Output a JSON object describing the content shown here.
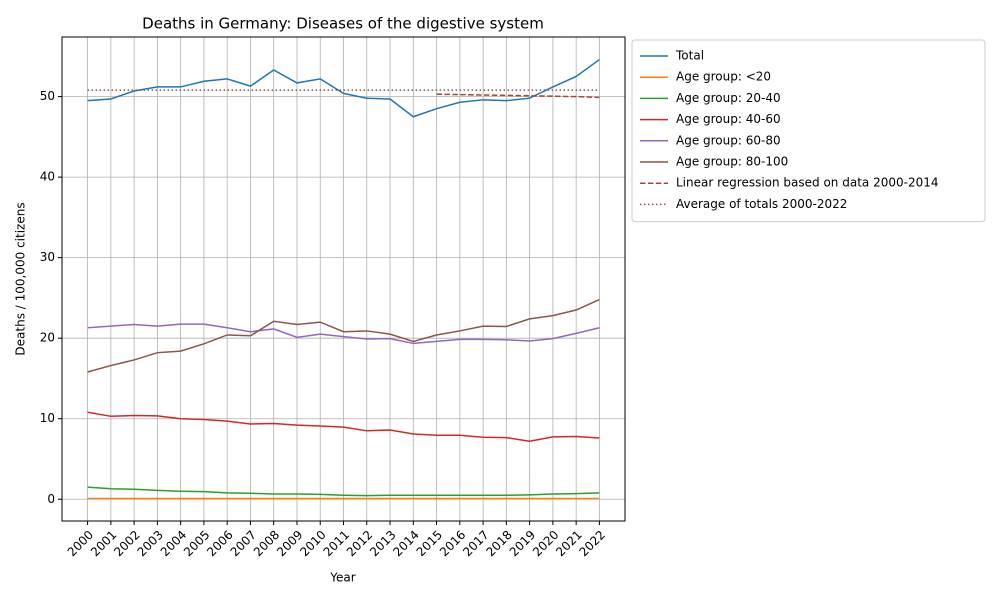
{
  "chart_data": {
    "type": "line",
    "title": "Deaths in Germany: Diseases of the digestive system",
    "xlabel": "Year",
    "ylabel": "Deaths / 100,000 citizens",
    "x": [
      2000,
      2001,
      2002,
      2003,
      2004,
      2005,
      2006,
      2007,
      2008,
      2009,
      2010,
      2011,
      2012,
      2013,
      2014,
      2015,
      2016,
      2017,
      2018,
      2019,
      2020,
      2021,
      2022
    ],
    "xlim": [
      1998.9,
      2023.1
    ],
    "xticks": [
      2000,
      2001,
      2002,
      2003,
      2004,
      2005,
      2006,
      2007,
      2008,
      2009,
      2010,
      2011,
      2012,
      2013,
      2014,
      2015,
      2016,
      2017,
      2018,
      2019,
      2020,
      2021,
      2022
    ],
    "ylim": [
      -2.7,
      57.4
    ],
    "yticks": [
      0,
      10,
      20,
      30,
      40,
      50
    ],
    "grid": true,
    "legend": "outside-upper-right",
    "series": [
      {
        "name": "Total",
        "color": "#1f77b4",
        "linestyle": "solid",
        "values": [
          49.5,
          49.7,
          50.7,
          51.2,
          51.2,
          51.9,
          52.2,
          51.3,
          53.3,
          51.7,
          52.2,
          50.4,
          49.8,
          49.7,
          47.5,
          48.5,
          49.3,
          49.6,
          49.5,
          49.8,
          51.2,
          52.5,
          54.6
        ]
      },
      {
        "name": "Age group: <20",
        "color": "#ff7f0e",
        "linestyle": "solid",
        "values": [
          0.1,
          0.1,
          0.1,
          0.1,
          0.1,
          0.1,
          0.1,
          0.1,
          0.1,
          0.1,
          0.1,
          0.1,
          0.1,
          0.1,
          0.1,
          0.1,
          0.1,
          0.1,
          0.1,
          0.1,
          0.1,
          0.1,
          0.1
        ]
      },
      {
        "name": "Age group: 20-40",
        "color": "#2ca02c",
        "linestyle": "solid",
        "values": [
          1.5,
          1.3,
          1.25,
          1.1,
          1.0,
          0.95,
          0.8,
          0.75,
          0.65,
          0.65,
          0.6,
          0.5,
          0.45,
          0.5,
          0.5,
          0.5,
          0.5,
          0.5,
          0.5,
          0.55,
          0.65,
          0.7,
          0.8
        ]
      },
      {
        "name": "Age group: 40-60",
        "color": "#d62728",
        "linestyle": "solid",
        "values": [
          10.8,
          10.3,
          10.4,
          10.35,
          10.0,
          9.9,
          9.7,
          9.35,
          9.4,
          9.2,
          9.1,
          8.95,
          8.5,
          8.6,
          8.1,
          7.95,
          7.95,
          7.7,
          7.65,
          7.2,
          7.75,
          7.8,
          7.6
        ]
      },
      {
        "name": "Age group: 60-80",
        "color": "#9467bd",
        "linestyle": "solid",
        "values": [
          21.3,
          21.5,
          21.7,
          21.5,
          21.75,
          21.75,
          21.3,
          20.8,
          21.15,
          20.1,
          20.5,
          20.2,
          19.9,
          19.95,
          19.35,
          19.6,
          19.85,
          19.85,
          19.8,
          19.65,
          19.95,
          20.6,
          21.3
        ]
      },
      {
        "name": "Age group: 80-100",
        "color": "#8c564b",
        "linestyle": "solid",
        "values": [
          15.8,
          16.6,
          17.3,
          18.2,
          18.4,
          19.3,
          20.4,
          20.3,
          22.1,
          21.7,
          22.0,
          20.8,
          20.9,
          20.5,
          19.6,
          20.4,
          20.9,
          21.5,
          21.45,
          22.4,
          22.8,
          23.5,
          24.8
        ]
      },
      {
        "name": "Linear regression based on data 2000-2014",
        "color": "#a0473a",
        "linestyle": "dashed",
        "values": [
          null,
          null,
          null,
          null,
          null,
          null,
          null,
          null,
          null,
          null,
          null,
          null,
          null,
          null,
          null,
          50.3,
          50.25,
          50.2,
          50.15,
          50.1,
          50.05,
          50.0,
          49.9
        ]
      },
      {
        "name": "Average of totals 2000-2022",
        "color": "#8c564b",
        "linestyle": "dotted",
        "values": [
          50.8,
          50.8,
          50.8,
          50.8,
          50.8,
          50.8,
          50.8,
          50.8,
          50.8,
          50.8,
          50.8,
          50.8,
          50.8,
          50.8,
          50.8,
          50.8,
          50.8,
          50.8,
          50.8,
          50.8,
          50.8,
          50.8,
          50.8
        ]
      }
    ]
  }
}
